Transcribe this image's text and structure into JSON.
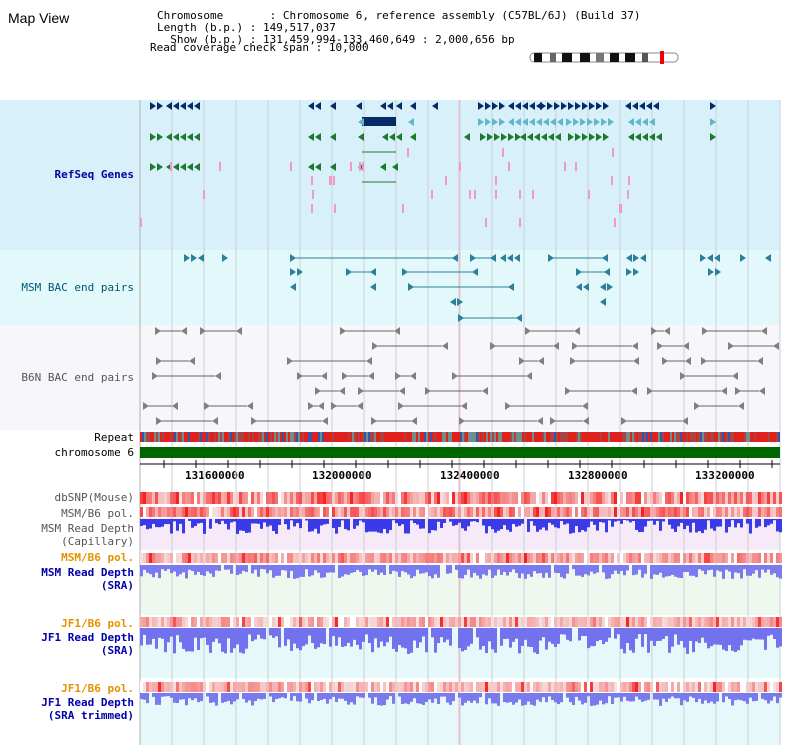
{
  "view": {
    "title": "Map View",
    "chromosome_label": "Chromosome",
    "chromosome_value": "Chromosome 6, reference assembly (C57BL/6J) (Build 37)",
    "length_label": "Length (b.p.)",
    "length_value": "149,517,037",
    "show_label": "Show (b.p.)",
    "show_value": "131,459,994-133,460,649 : 2,000,656 bp",
    "coverage_label": "Read coverage check span",
    "coverage_value": "10,000"
  },
  "tracks": {
    "refseq": "RefSeq Genes",
    "msm_bac": "MSM BAC end pairs",
    "b6n_bac": "B6N BAC end pairs",
    "repeat": "Repeat",
    "chromosome": "chromosome 6",
    "dbsnp": "dbSNP(Mouse)",
    "msm_b6_pol_1": "MSM/B6 pol.",
    "msm_depth_cap_1": "MSM Read Depth",
    "msm_depth_cap_2": "(Capillary)",
    "msm_b6_pol_2": "MSM/B6 pol.",
    "msm_depth_sra_1": "MSM Read Depth",
    "msm_depth_sra_2": "(SRA)",
    "jf1_b6_pol_1": "JF1/B6 pol.",
    "jf1_depth_sra_1": "JF1 Read Depth",
    "jf1_depth_sra_2": "(SRA)",
    "jf1_b6_pol_2": "JF1/B6 pol.",
    "jf1_depth_trim_1": "JF1 Read Depth",
    "jf1_depth_trim_2": "(SRA trimmed)"
  },
  "axis": {
    "ticks": [
      "131600000",
      "132000000",
      "132400000",
      "132800000",
      "133200000"
    ]
  },
  "colors": {
    "refseq_bg": "#d7f0fa",
    "msm_bg": "#e3f8fa",
    "b6n_bg": "#f4f4fa",
    "chrom_green": "#006600",
    "repeat_red": "#e0201a",
    "depth_blue": "#3333ee"
  }
}
